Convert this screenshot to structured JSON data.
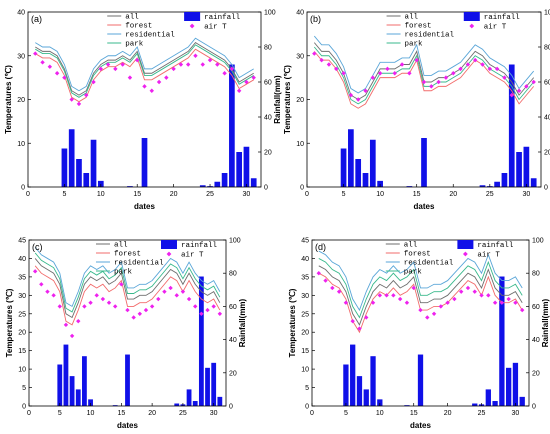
{
  "legend": [
    {
      "key": "all",
      "label": "all",
      "color": "#6e6e6e",
      "kind": "line"
    },
    {
      "key": "forest",
      "label": "forest",
      "color": "#f26b6b",
      "kind": "line"
    },
    {
      "key": "residential",
      "label": "residential",
      "color": "#5aa6d8",
      "kind": "line"
    },
    {
      "key": "park",
      "label": "park",
      "color": "#39b98c",
      "kind": "line"
    },
    {
      "key": "rainfall",
      "label": "rainfall",
      "color": "#1010e8",
      "kind": "bar"
    },
    {
      "key": "airT",
      "label": "air T",
      "color": "#ee22ee",
      "kind": "marker"
    }
  ],
  "chart_data": [
    {
      "type": "line",
      "panel_label": "(a)",
      "xlabel": "dates",
      "ylabel": "Temperatures (℃)",
      "y2label": "Rainfall(mm)",
      "xlim": [
        0,
        32
      ],
      "xticks": [
        0,
        5,
        10,
        15,
        20,
        25,
        30
      ],
      "ylim": [
        0,
        40
      ],
      "yticks": [
        0,
        10,
        20,
        30,
        40
      ],
      "y2lim": [
        0,
        100
      ],
      "y2ticks": [
        0,
        20,
        40,
        60,
        80,
        100
      ],
      "x": [
        1,
        2,
        3,
        4,
        5,
        6,
        7,
        8,
        9,
        10,
        11,
        12,
        13,
        14,
        15,
        16,
        17,
        18,
        19,
        20,
        21,
        22,
        23,
        24,
        25,
        26,
        27,
        28,
        29,
        30,
        31
      ],
      "series": [
        {
          "key": "all",
          "values": [
            32,
            31,
            31,
            30,
            27,
            22,
            21,
            22,
            26,
            28,
            29,
            29,
            30,
            29,
            31,
            26,
            26,
            27,
            28,
            29,
            30,
            31,
            33,
            32,
            31,
            30,
            29,
            27,
            24,
            25,
            26
          ]
        },
        {
          "key": "forest",
          "values": [
            30.5,
            29.5,
            29.5,
            28.5,
            25.5,
            20.5,
            19.5,
            20.5,
            24.5,
            26.5,
            27.5,
            27.5,
            28.5,
            27.5,
            29.5,
            24.5,
            24.5,
            25.5,
            26.5,
            27.5,
            28.5,
            29.5,
            31.5,
            30.5,
            29.5,
            28.5,
            27.5,
            25.5,
            22.5,
            23.5,
            24.5
          ]
        },
        {
          "key": "residential",
          "values": [
            33,
            32,
            32,
            31,
            28,
            23,
            22,
            23,
            27,
            29,
            30,
            30,
            31,
            30,
            32,
            27,
            27,
            28,
            29,
            30,
            31,
            32,
            34,
            33,
            32,
            31,
            30,
            28,
            25,
            26,
            27
          ]
        },
        {
          "key": "park",
          "values": [
            31.5,
            30.5,
            30.5,
            29.5,
            26.5,
            21.5,
            20.5,
            21.5,
            25.5,
            27.5,
            28.5,
            28.5,
            29.5,
            28.5,
            30.5,
            25.5,
            25.5,
            26.5,
            27.5,
            28.5,
            29.5,
            30.5,
            32.5,
            31.5,
            30.5,
            29.5,
            28.5,
            26.5,
            23.5,
            24.5,
            25.5
          ]
        }
      ],
      "airT": [
        30.5,
        28.5,
        27.5,
        26,
        25,
        20,
        19,
        21,
        24,
        27,
        28,
        27,
        28,
        25,
        29,
        23,
        22,
        24,
        25,
        27,
        28,
        28,
        30,
        28,
        29,
        28,
        26,
        27,
        22,
        24,
        25
      ],
      "rainfall": [
        0,
        0,
        0,
        0,
        22,
        33,
        16,
        8,
        27,
        3.5,
        0,
        0,
        0,
        0.5,
        0,
        28,
        0,
        0,
        0,
        0,
        0,
        0,
        0,
        1,
        0.5,
        3,
        8,
        70,
        20,
        23,
        5
      ]
    },
    {
      "type": "line",
      "panel_label": "(b)",
      "xlabel": "dates",
      "ylabel": "Temperatures (℃)",
      "y2label": "Rainfall(mm)",
      "xlim": [
        0,
        32
      ],
      "xticks": [
        0,
        5,
        10,
        15,
        20,
        25,
        30
      ],
      "ylim": [
        0,
        40
      ],
      "yticks": [
        0,
        10,
        20,
        30,
        40
      ],
      "y2lim": [
        0,
        100
      ],
      "y2ticks": [
        0,
        20,
        40,
        60,
        80,
        100
      ],
      "x": [
        1,
        2,
        3,
        4,
        5,
        6,
        7,
        8,
        9,
        10,
        11,
        12,
        13,
        14,
        15,
        16,
        17,
        18,
        19,
        20,
        21,
        22,
        23,
        24,
        25,
        26,
        27,
        28,
        29,
        30,
        31
      ],
      "series": [
        {
          "key": "all",
          "values": [
            33,
            31,
            31,
            29,
            26,
            21,
            20,
            21,
            24,
            27,
            27,
            27,
            28,
            28,
            31,
            24,
            24,
            25,
            25,
            26,
            27,
            29,
            31,
            30,
            28,
            27,
            26,
            24,
            21,
            23,
            25
          ]
        },
        {
          "key": "forest",
          "values": [
            31,
            29,
            29,
            27,
            24,
            19,
            18,
            19,
            22,
            25,
            25,
            25,
            26,
            26,
            29,
            22,
            22,
            23,
            23,
            24,
            25,
            27,
            29,
            28,
            26,
            25,
            24,
            22,
            19,
            21,
            23
          ]
        },
        {
          "key": "residential",
          "values": [
            34.5,
            32.5,
            32.5,
            30.5,
            27.5,
            22.5,
            21.5,
            22.5,
            25.5,
            28.5,
            28.5,
            28.5,
            29.5,
            29.5,
            32.5,
            25.5,
            25.5,
            26.5,
            26.5,
            27.5,
            28.5,
            30.5,
            32.5,
            31.5,
            29.5,
            28.5,
            27.5,
            25.5,
            22.5,
            24.5,
            26.5
          ]
        },
        {
          "key": "park",
          "values": [
            32,
            30,
            30,
            28,
            25,
            20,
            19,
            20,
            23,
            26,
            26,
            26,
            27,
            27,
            30,
            23,
            23,
            24,
            24,
            25,
            26,
            28,
            30,
            29,
            27,
            26,
            25,
            23,
            20,
            22,
            24
          ]
        }
      ],
      "airT": [
        30.5,
        29,
        28,
        27,
        26,
        21,
        20,
        22,
        25,
        26,
        27,
        26,
        28,
        26,
        29,
        24,
        23,
        24,
        25,
        26,
        27,
        28,
        29,
        28,
        27,
        27,
        25,
        21,
        22,
        23,
        24
      ],
      "rainfall": [
        0,
        0,
        0,
        0,
        22,
        33,
        16,
        8,
        27,
        3.5,
        0,
        0,
        0,
        0.5,
        0,
        28,
        0,
        0,
        0,
        0,
        0,
        0,
        0,
        1,
        0.5,
        3,
        8,
        70,
        20,
        23,
        5
      ]
    },
    {
      "type": "line",
      "panel_label": "(c)",
      "xlabel": "dates",
      "ylabel": "Temperatures (℃)",
      "y2label": "Rainfall(mm)",
      "xlim": [
        0,
        32
      ],
      "xticks": [
        0,
        5,
        10,
        15,
        20,
        25,
        30
      ],
      "ylim": [
        0,
        45
      ],
      "yticks": [
        0,
        5,
        10,
        15,
        20,
        25,
        30,
        35,
        40,
        45
      ],
      "y2lim": [
        0,
        100
      ],
      "y2ticks": [
        0,
        20,
        40,
        60,
        80,
        100
      ],
      "x": [
        1,
        2,
        3,
        4,
        5,
        6,
        7,
        8,
        9,
        10,
        11,
        12,
        13,
        14,
        15,
        16,
        17,
        18,
        19,
        20,
        21,
        22,
        23,
        24,
        25,
        26,
        27,
        28,
        29,
        30,
        31
      ],
      "series": [
        {
          "key": "all",
          "values": [
            40,
            38,
            37,
            36,
            33,
            25,
            24,
            28,
            33,
            35,
            34,
            35,
            33,
            34,
            36,
            29,
            29,
            30,
            30,
            31,
            33,
            35,
            37,
            36,
            33,
            36,
            33,
            31,
            30,
            31,
            28
          ]
        },
        {
          "key": "forest",
          "values": [
            38,
            36,
            35,
            34,
            31,
            23,
            22,
            26,
            31,
            33,
            32,
            33,
            31,
            32,
            34,
            27,
            27,
            28,
            28,
            29,
            31,
            33,
            35,
            34,
            31,
            34,
            31,
            29,
            28,
            29,
            26
          ]
        },
        {
          "key": "residential",
          "values": [
            43,
            41,
            40,
            39,
            36,
            28,
            27,
            31,
            36,
            38,
            37,
            38,
            36,
            37,
            39,
            32,
            32,
            33,
            33,
            34,
            36,
            38,
            40,
            39,
            36,
            39,
            36,
            34,
            33,
            34,
            31
          ]
        },
        {
          "key": "park",
          "values": [
            41.5,
            39.5,
            38.5,
            37.5,
            34.5,
            26.5,
            25.5,
            29.5,
            34.5,
            36.5,
            35.5,
            36.5,
            34.5,
            35.5,
            37.5,
            30.5,
            30.5,
            31.5,
            31.5,
            32.5,
            34.5,
            36.5,
            38.5,
            37.5,
            34.5,
            37.5,
            34.5,
            32.5,
            31.5,
            32.5,
            29.5
          ]
        }
      ],
      "airT": [
        36.5,
        33,
        31,
        30,
        27,
        22,
        19,
        23,
        27,
        28,
        30,
        29,
        28,
        27,
        33,
        26,
        24,
        25,
        26,
        27,
        29,
        31,
        32,
        30,
        31,
        29,
        27,
        25,
        26,
        27,
        25
      ],
      "rainfall": [
        0,
        0,
        0,
        0,
        25,
        37,
        18,
        10,
        30,
        4,
        0,
        0,
        0,
        0.5,
        0,
        31,
        0,
        0,
        0,
        0,
        0,
        0,
        0,
        1.5,
        1,
        10,
        3,
        78,
        23,
        26,
        5.5
      ]
    },
    {
      "type": "line",
      "panel_label": "(d)",
      "xlabel": "dates",
      "ylabel": "Temperatures (℃)",
      "y2label": "Rainfall(mm)",
      "xlim": [
        0,
        32
      ],
      "xticks": [
        0,
        5,
        10,
        15,
        20,
        25,
        30
      ],
      "ylim": [
        0,
        45
      ],
      "yticks": [
        0,
        5,
        10,
        15,
        20,
        25,
        30,
        35,
        40,
        45
      ],
      "y2lim": [
        0,
        100
      ],
      "y2ticks": [
        0,
        20,
        40,
        60,
        80,
        100
      ],
      "x": [
        1,
        2,
        3,
        4,
        5,
        6,
        7,
        8,
        9,
        10,
        11,
        12,
        13,
        14,
        15,
        16,
        17,
        18,
        19,
        20,
        21,
        22,
        23,
        24,
        25,
        26,
        27,
        28,
        29,
        30,
        31
      ],
      "series": [
        {
          "key": "all",
          "values": [
            38,
            37,
            35,
            34,
            31,
            25,
            22,
            27,
            31,
            33,
            32,
            34,
            32,
            33,
            35,
            28,
            28,
            29,
            29,
            30,
            32,
            34,
            36,
            35,
            32,
            37,
            32,
            30,
            30,
            31,
            28
          ]
        },
        {
          "key": "forest",
          "values": [
            36,
            35,
            33,
            32,
            29,
            23,
            20,
            25,
            29,
            31,
            30,
            32,
            30,
            31,
            33,
            26,
            26,
            27,
            27,
            28,
            30,
            32,
            34,
            33,
            30,
            35,
            30,
            28,
            28,
            29,
            26
          ]
        },
        {
          "key": "residential",
          "values": [
            42,
            41,
            39,
            38,
            35,
            29,
            26,
            31,
            35,
            37,
            36,
            38,
            36,
            37,
            39,
            32,
            32,
            33,
            33,
            34,
            36,
            38,
            40,
            39,
            36,
            41,
            36,
            34,
            34,
            35,
            32
          ]
        },
        {
          "key": "park",
          "values": [
            40,
            39,
            37,
            36,
            33,
            27,
            24,
            29,
            33,
            35,
            34,
            36,
            34,
            35,
            37,
            30,
            30,
            31,
            31,
            32,
            34,
            36,
            38,
            37,
            34,
            39,
            34,
            32,
            32,
            33,
            30
          ]
        }
      ],
      "airT": [
        36,
        34,
        32,
        31,
        28,
        23,
        21,
        24,
        28,
        30,
        30,
        30,
        29,
        28,
        32,
        26,
        24,
        25,
        27,
        28,
        29,
        31,
        32,
        31,
        30,
        30,
        28,
        28,
        29,
        28,
        26
      ],
      "rainfall": [
        0,
        0,
        0,
        0,
        25,
        37,
        18,
        10,
        30,
        4,
        0,
        0,
        0,
        0.5,
        0,
        31,
        0,
        0,
        0,
        0,
        0,
        0,
        0,
        1.5,
        1,
        10,
        3,
        78,
        23,
        26,
        5.5
      ]
    }
  ]
}
